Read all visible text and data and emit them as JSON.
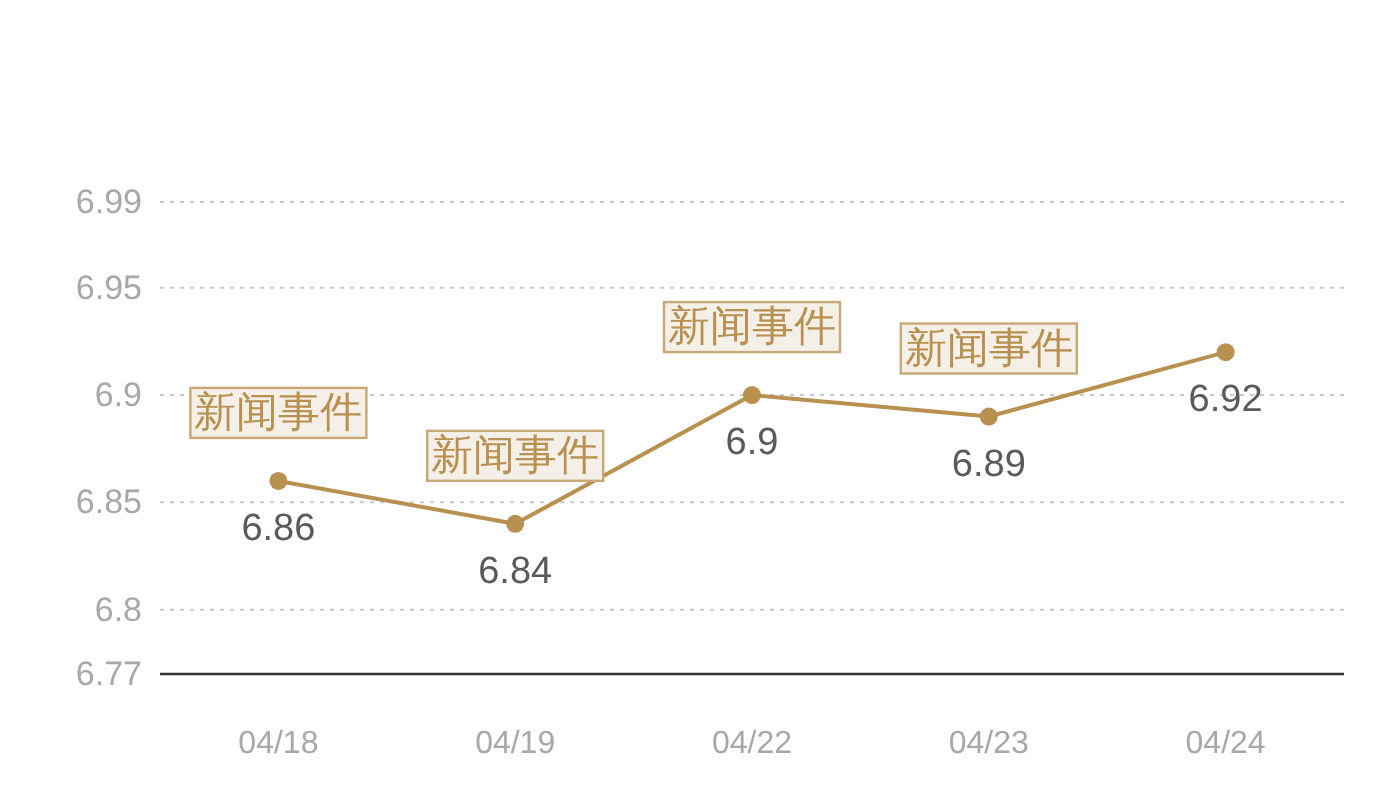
{
  "chart_data": {
    "type": "line",
    "categories": [
      "04/18",
      "04/19",
      "04/22",
      "04/23",
      "04/24"
    ],
    "series": [
      {
        "color": "#b8904f",
        "values": [
          6.86,
          6.84,
          6.9,
          6.89,
          6.92
        ]
      }
    ],
    "ylim": [
      6.77,
      6.99
    ],
    "yticks": [
      6.77,
      6.8,
      6.85,
      6.9,
      6.95,
      6.99
    ],
    "grid": "y",
    "marker": "circle",
    "data_labels": true,
    "annotations": [
      {
        "text": "新闻事件",
        "x": "04/18",
        "y": 6.86
      },
      {
        "text": "新闻事件",
        "x": "04/19",
        "y": 6.84
      },
      {
        "text": "新闻事件",
        "x": "04/22",
        "y": 6.9
      },
      {
        "text": "新闻事件",
        "x": "04/23",
        "y": 6.89
      }
    ]
  }
}
